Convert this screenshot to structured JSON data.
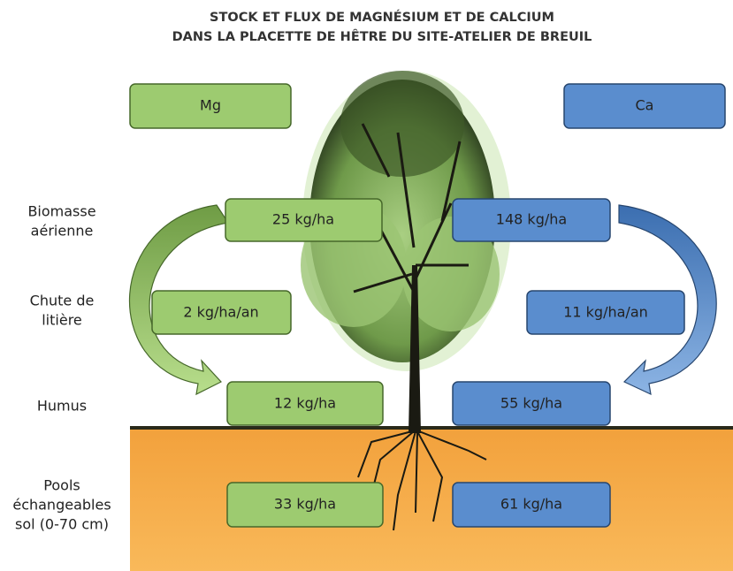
{
  "title": [
    "STOCK ET FLUX DE MAGNÉSIUM ET DE CALCIUM",
    "DANS LA PLACETTE DE HÊTRE DU SITE-ATELIER DE BREUIL"
  ],
  "columns": [
    "Mg",
    "Ca"
  ],
  "rows": [
    {
      "label": [
        "Biomasse",
        "aérienne"
      ],
      "values": [
        "25 kg/ha",
        "148 kg/ha"
      ]
    },
    {
      "label": [
        "Chute de",
        "litière"
      ],
      "values": [
        "2 kg/ha/an",
        "11 kg/ha/an"
      ]
    },
    {
      "label": [
        "Humus"
      ],
      "values": [
        "12 kg/ha",
        "55 kg/ha"
      ]
    },
    {
      "label": [
        "Pools",
        "échangeables",
        "sol (0-70 cm)"
      ],
      "values": [
        "33 kg/ha",
        "61 kg/ha"
      ]
    }
  ]
}
